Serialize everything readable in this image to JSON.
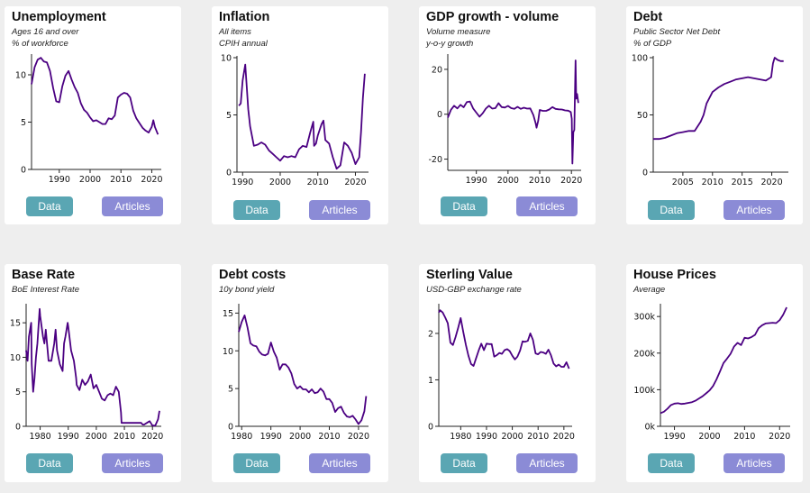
{
  "theme": {
    "line_color": "#4b0082",
    "data_button_color": "#5aa6b3",
    "articles_button_color": "#8b8bd6",
    "card_background": "#ffffff",
    "page_background": "#eeeeee"
  },
  "buttons": {
    "data_label": "Data",
    "articles_label": "Articles"
  },
  "cards": [
    {
      "title": "Unemployment",
      "subtitle1": "Ages 16 and over",
      "subtitle2": "% of workforce"
    },
    {
      "title": "Inflation",
      "subtitle1": "All items",
      "subtitle2": "CPIH annual"
    },
    {
      "title": "GDP growth - volume",
      "subtitle1": "Volume measure",
      "subtitle2": "y-o-y growth"
    },
    {
      "title": "Debt",
      "subtitle1": "Public Sector Net Debt",
      "subtitle2": "% of GDP"
    },
    {
      "title": "Base Rate",
      "subtitle1": "BoE Interest Rate"
    },
    {
      "title": "Debt costs",
      "subtitle1": "10y bond yield"
    },
    {
      "title": "Sterling Value",
      "subtitle1": "USD-GBP exchange rate"
    },
    {
      "title": "House Prices",
      "subtitle1": "Average"
    }
  ],
  "chart_data": [
    {
      "type": "line",
      "title": "Unemployment",
      "subtitle": [
        "Ages 16 and over",
        "% of workforce"
      ],
      "xlim": [
        1981,
        2022.5
      ],
      "xticks": [
        1990,
        2000,
        2010,
        2020
      ],
      "ylim": [
        0,
        12
      ],
      "yticks": [
        0,
        5,
        10
      ],
      "ytick_labels": [
        "0",
        "5",
        "10"
      ],
      "x": [
        1981,
        1982,
        1983,
        1984,
        1985,
        1986,
        1987,
        1988,
        1989,
        1990,
        1991,
        1992,
        1993,
        1994,
        1995,
        1996,
        1997,
        1998,
        1999,
        2000,
        2001,
        2002,
        2003,
        2004,
        2005,
        2006,
        2007,
        2008,
        2009,
        2010,
        2011,
        2012,
        2013,
        2014,
        2015,
        2016,
        2017,
        2018,
        2019,
        2020,
        2020.5,
        2021,
        2022
      ],
      "y": [
        9.0,
        10.8,
        11.6,
        11.8,
        11.4,
        11.3,
        10.4,
        8.6,
        7.2,
        7.1,
        8.8,
        9.9,
        10.4,
        9.5,
        8.7,
        8.1,
        7.0,
        6.3,
        6.0,
        5.5,
        5.1,
        5.2,
        5.0,
        4.8,
        4.8,
        5.4,
        5.3,
        5.7,
        7.6,
        7.9,
        8.1,
        8.0,
        7.6,
        6.2,
        5.4,
        4.9,
        4.4,
        4.1,
        3.9,
        4.5,
        5.2,
        4.5,
        3.7
      ]
    },
    {
      "type": "line",
      "title": "Inflation",
      "subtitle": [
        "All items",
        "CPIH annual"
      ],
      "xlim": [
        1988.5,
        2023
      ],
      "xticks": [
        1990,
        2000,
        2010,
        2020
      ],
      "ylim": [
        0,
        10
      ],
      "yticks": [
        0,
        5,
        10
      ],
      "ytick_labels": [
        "0",
        "5",
        "10"
      ],
      "x": [
        1989,
        1989.5,
        1990,
        1990.7,
        1991,
        1991.5,
        1992,
        1993,
        1994,
        1995,
        1996,
        1997,
        1998,
        1999,
        2000,
        2001,
        2002,
        2003,
        2004,
        2005,
        2006,
        2007,
        2008,
        2008.8,
        2009,
        2009.5,
        2010,
        2011,
        2011.5,
        2012,
        2013,
        2014,
        2015,
        2016,
        2017,
        2018,
        2019,
        2020,
        2021,
        2021.5,
        2022,
        2022.5
      ],
      "y": [
        5.8,
        6.0,
        8.0,
        9.4,
        8.0,
        5.5,
        4.0,
        2.3,
        2.4,
        2.6,
        2.4,
        1.9,
        1.6,
        1.3,
        1.0,
        1.4,
        1.3,
        1.4,
        1.3,
        2.0,
        2.3,
        2.2,
        3.5,
        4.4,
        2.3,
        2.5,
        3.2,
        4.2,
        4.5,
        2.8,
        2.5,
        1.3,
        0.3,
        0.6,
        2.6,
        2.3,
        1.7,
        0.7,
        1.3,
        3.5,
        6.5,
        8.6
      ]
    },
    {
      "type": "line",
      "title": "GDP growth - volume",
      "subtitle": [
        "Volume measure",
        "y-o-y growth"
      ],
      "xlim": [
        1981,
        2022.5
      ],
      "xticks": [
        1990,
        2000,
        2010,
        2020
      ],
      "ylim": [
        -25,
        26
      ],
      "yticks": [
        -20,
        0,
        20
      ],
      "ytick_labels": [
        "-20",
        "0",
        "20"
      ],
      "x": [
        1981,
        1982,
        1983,
        1984,
        1985,
        1986,
        1987,
        1988,
        1989,
        1990,
        1991,
        1992,
        1993,
        1994,
        1995,
        1996,
        1997,
        1998,
        1999,
        2000,
        2001,
        2002,
        2003,
        2004,
        2005,
        2006,
        2007,
        2008,
        2008.7,
        2009,
        2009.5,
        2010,
        2011,
        2012,
        2013,
        2014,
        2015,
        2016,
        2017,
        2018,
        2019,
        2019.8,
        2020.1,
        2020.3,
        2020.6,
        2020.9,
        2021.3,
        2021.5,
        2021.8,
        2022.2
      ],
      "y": [
        -1.5,
        2.0,
        3.8,
        2.6,
        4.2,
        3.1,
        5.4,
        5.7,
        2.6,
        0.7,
        -1.1,
        0.4,
        2.5,
        3.8,
        2.5,
        2.7,
        4.9,
        3.2,
        3.0,
        3.7,
        2.7,
        2.4,
        3.3,
        2.4,
        2.9,
        2.5,
        2.6,
        -0.4,
        -4.0,
        -6.0,
        -3.0,
        1.9,
        1.5,
        1.5,
        2.1,
        3.2,
        2.4,
        2.2,
        2.1,
        1.7,
        1.6,
        1.0,
        -2.0,
        -22.0,
        -8.0,
        -7.0,
        24.0,
        7.0,
        9.0,
        5.0
      ]
    },
    {
      "type": "line",
      "title": "Debt",
      "subtitle": [
        "Public Sector Net Debt",
        "% of GDP"
      ],
      "xlim": [
        2000,
        2022.5
      ],
      "xticks": [
        2005,
        2010,
        2015,
        2020
      ],
      "ylim": [
        0,
        100
      ],
      "yticks": [
        0,
        50,
        100
      ],
      "ytick_labels": [
        "0",
        "50",
        "100"
      ],
      "x": [
        2000,
        2001,
        2002,
        2003,
        2004,
        2005,
        2006,
        2007,
        2008,
        2008.5,
        2009,
        2010,
        2011,
        2012,
        2013,
        2014,
        2015,
        2016,
        2017,
        2018,
        2019,
        2019.9,
        2020.2,
        2020.5,
        2021,
        2021.5,
        2022
      ],
      "y": [
        29,
        29,
        30,
        32,
        34,
        35,
        36,
        36,
        44,
        50,
        60,
        70,
        74,
        77,
        79,
        81,
        82,
        83,
        82,
        81,
        80,
        83,
        95,
        100,
        98,
        97,
        97
      ]
    },
    {
      "type": "line",
      "title": "Base Rate",
      "subtitle": [
        "BoE Interest Rate"
      ],
      "xlim": [
        1975,
        2022.5
      ],
      "xticks": [
        1980,
        1990,
        2000,
        2010,
        2020
      ],
      "ylim": [
        0,
        17.5
      ],
      "yticks": [
        0,
        5,
        10,
        15
      ],
      "ytick_labels": [
        "0",
        "5",
        "10",
        "15"
      ],
      "x": [
        1975,
        1975.5,
        1976,
        1976.8,
        1977,
        1977.5,
        1978,
        1978.5,
        1979,
        1979.8,
        1980,
        1981,
        1981.5,
        1982,
        1983,
        1984,
        1985,
        1985.5,
        1986,
        1987,
        1988,
        1988.5,
        1989,
        1989.8,
        1990,
        1991,
        1992,
        1992.8,
        1993,
        1994,
        1995,
        1996,
        1997,
        1998,
        1999,
        2000,
        2001,
        2002,
        2003,
        2004,
        2005,
        2006,
        2007,
        2008,
        2008.8,
        2009,
        2010,
        2012,
        2014,
        2016,
        2016.5,
        2017,
        2018,
        2019,
        2020,
        2021,
        2022,
        2022.5
      ],
      "y": [
        11.0,
        9.5,
        13.0,
        15.0,
        9.0,
        5.0,
        7.0,
        10.0,
        12.0,
        17.0,
        16.0,
        13.0,
        12.0,
        14.0,
        9.5,
        9.5,
        12.0,
        14.0,
        11.0,
        9.0,
        8.0,
        12.0,
        13.0,
        15.0,
        14.5,
        11.0,
        9.5,
        7.0,
        6.0,
        5.25,
        6.75,
        6.0,
        6.5,
        7.5,
        5.5,
        6.0,
        5.0,
        4.0,
        3.75,
        4.5,
        4.75,
        4.5,
        5.75,
        5.0,
        2.0,
        0.5,
        0.5,
        0.5,
        0.5,
        0.5,
        0.25,
        0.25,
        0.5,
        0.75,
        0.1,
        0.1,
        1.0,
        2.25
      ]
    },
    {
      "type": "line",
      "title": "Debt costs",
      "subtitle": [
        "10y bond yield"
      ],
      "xlim": [
        1979,
        2022.8
      ],
      "xticks": [
        1980,
        1990,
        2000,
        2010,
        2020
      ],
      "ylim": [
        0,
        16
      ],
      "yticks": [
        0,
        5,
        10,
        15
      ],
      "ytick_labels": [
        "0",
        "5",
        "10",
        "15"
      ],
      "x": [
        1979,
        1980,
        1981,
        1982,
        1983,
        1984,
        1985,
        1986,
        1987,
        1988,
        1989,
        1990,
        1991,
        1992,
        1993,
        1994,
        1995,
        1996,
        1997,
        1998,
        1999,
        2000,
        2001,
        2002,
        2003,
        2004,
        2005,
        2006,
        2007,
        2008,
        2009,
        2010,
        2011,
        2012,
        2013,
        2014,
        2015,
        2016,
        2017,
        2018,
        2019,
        2020,
        2021,
        2022,
        2022.6
      ],
      "y": [
        12.5,
        13.8,
        14.7,
        13.1,
        11.0,
        10.7,
        10.6,
        9.9,
        9.5,
        9.4,
        9.6,
        11.1,
        9.9,
        9.1,
        7.5,
        8.2,
        8.2,
        7.8,
        7.0,
        5.6,
        5.0,
        5.3,
        4.9,
        4.9,
        4.5,
        4.9,
        4.4,
        4.5,
        5.0,
        4.6,
        3.6,
        3.6,
        3.1,
        1.9,
        2.4,
        2.6,
        1.8,
        1.3,
        1.2,
        1.4,
        0.9,
        0.3,
        0.8,
        2.0,
        4.0
      ]
    },
    {
      "type": "line",
      "title": "Sterling Value",
      "subtitle": [
        "USD-GBP exchange rate"
      ],
      "xlim": [
        1971.5,
        2022.5
      ],
      "xticks": [
        1980,
        1990,
        2000,
        2010,
        2020
      ],
      "ylim": [
        0,
        2.6
      ],
      "yticks": [
        0,
        1,
        2
      ],
      "ytick_labels": [
        "0",
        "1",
        "2"
      ],
      "x": [
        1971.5,
        1972,
        1973,
        1974,
        1975,
        1976,
        1977,
        1978,
        1979,
        1980,
        1981,
        1982,
        1983,
        1984,
        1985,
        1986,
        1987,
        1988,
        1989,
        1990,
        1991,
        1992,
        1993,
        1994,
        1995,
        1996,
        1997,
        1998,
        1999,
        2000,
        2001,
        2002,
        2003,
        2004,
        2005,
        2006,
        2007,
        2008,
        2009,
        2010,
        2011,
        2012,
        2013,
        2014,
        2015,
        2016,
        2017,
        2018,
        2019,
        2020,
        2021,
        2022
      ],
      "y": [
        2.45,
        2.5,
        2.45,
        2.34,
        2.22,
        1.8,
        1.75,
        1.92,
        2.12,
        2.33,
        2.03,
        1.75,
        1.52,
        1.34,
        1.3,
        1.47,
        1.64,
        1.78,
        1.64,
        1.78,
        1.77,
        1.77,
        1.5,
        1.53,
        1.58,
        1.56,
        1.64,
        1.66,
        1.62,
        1.52,
        1.44,
        1.5,
        1.63,
        1.83,
        1.82,
        1.84,
        2.0,
        1.86,
        1.57,
        1.55,
        1.6,
        1.59,
        1.56,
        1.65,
        1.53,
        1.35,
        1.29,
        1.33,
        1.28,
        1.28,
        1.38,
        1.24
      ]
    },
    {
      "type": "line",
      "title": "House Prices",
      "subtitle": [
        "Average"
      ],
      "xlim": [
        1986,
        2022.5
      ],
      "xticks": [
        1990,
        2000,
        2010,
        2020
      ],
      "ylim": [
        0,
        330000
      ],
      "yticks": [
        0,
        100000,
        200000,
        300000
      ],
      "ytick_labels": [
        "0k",
        "100k",
        "200k",
        "300k"
      ],
      "x": [
        1986,
        1987,
        1988,
        1989,
        1990,
        1991,
        1992,
        1993,
        1994,
        1995,
        1996,
        1997,
        1998,
        1999,
        2000,
        2001,
        2002,
        2003,
        2004,
        2005,
        2006,
        2007,
        2008,
        2009,
        2010,
        2011,
        2012,
        2013,
        2014,
        2015,
        2016,
        2017,
        2018,
        2019,
        2020,
        2021,
        2022
      ],
      "y": [
        36000,
        40000,
        48000,
        58000,
        62000,
        63000,
        61000,
        62000,
        64000,
        66000,
        70000,
        76000,
        82000,
        90000,
        98000,
        110000,
        128000,
        150000,
        173000,
        185000,
        198000,
        218000,
        228000,
        222000,
        242000,
        240000,
        244000,
        250000,
        268000,
        276000,
        281000,
        282000,
        283000,
        282000,
        290000,
        305000,
        325000
      ]
    }
  ]
}
